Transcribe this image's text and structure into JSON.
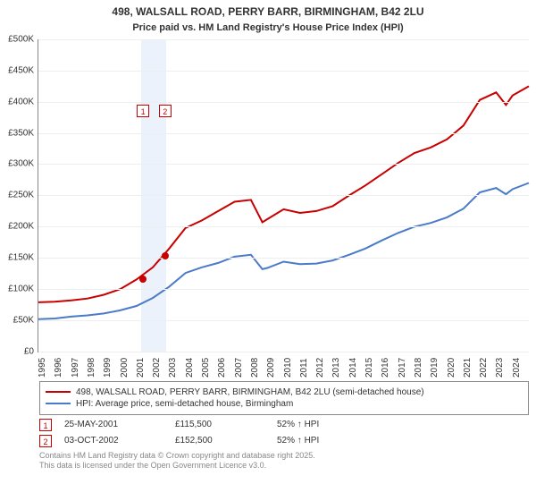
{
  "title": "498, WALSALL ROAD, PERRY BARR, BIRMINGHAM, B42 2LU",
  "subtitle": "Price paid vs. HM Land Registry's House Price Index (HPI)",
  "chart": {
    "type": "line",
    "x_axis": {
      "min": 1995,
      "max": 2025,
      "ticks": [
        1995,
        1996,
        1997,
        1998,
        1999,
        2000,
        2001,
        2002,
        2003,
        2004,
        2005,
        2006,
        2007,
        2008,
        2009,
        2010,
        2011,
        2012,
        2013,
        2014,
        2015,
        2016,
        2017,
        2018,
        2019,
        2020,
        2021,
        2022,
        2023,
        2024
      ],
      "label_fontsize": 10,
      "label_rotation_deg": -90
    },
    "y_axis": {
      "min": 0,
      "max": 500000,
      "ticks": [
        0,
        50000,
        100000,
        150000,
        200000,
        250000,
        300000,
        350000,
        400000,
        450000,
        500000
      ],
      "tick_labels": [
        "£0",
        "£50,000K",
        "£100,000K",
        "£150,000K",
        "£200,000K",
        "£250,000K",
        "£300,000K",
        "£350,000K",
        "£400,000K",
        "£450,000K",
        "£500,000K"
      ],
      "tick_labels_short": [
        "£0",
        "£50,000K",
        "£100,000K",
        "£150,000K",
        "£200,000K",
        "£250,000K",
        "£300,000K",
        "£350,000K",
        "£400,000K",
        "£450,000K",
        "£500,000K"
      ],
      "label_fontsize": 10,
      "grid_color": "#eeeeee"
    },
    "background_color": "#ffffff",
    "series": [
      {
        "name": "498, WALSALL ROAD, PERRY BARR, BIRMINGHAM, B42 2LU (semi-detached house)",
        "color": "#c80000",
        "line_width": 2,
        "data": [
          [
            1995,
            79000
          ],
          [
            1996,
            80000
          ],
          [
            1997,
            82000
          ],
          [
            1998,
            85000
          ],
          [
            1999,
            91000
          ],
          [
            2000,
            100000
          ],
          [
            2001,
            115500
          ],
          [
            2002,
            135000
          ],
          [
            2003,
            165000
          ],
          [
            2004,
            198000
          ],
          [
            2005,
            210000
          ],
          [
            2006,
            225000
          ],
          [
            2007,
            240000
          ],
          [
            2008,
            243000
          ],
          [
            2008.7,
            207000
          ],
          [
            2009,
            212000
          ],
          [
            2010,
            228000
          ],
          [
            2011,
            222000
          ],
          [
            2012,
            225000
          ],
          [
            2013,
            233000
          ],
          [
            2014,
            250000
          ],
          [
            2015,
            266000
          ],
          [
            2016,
            284000
          ],
          [
            2017,
            302000
          ],
          [
            2018,
            318000
          ],
          [
            2019,
            327000
          ],
          [
            2020,
            340000
          ],
          [
            2021,
            362000
          ],
          [
            2022,
            403000
          ],
          [
            2023,
            415000
          ],
          [
            2023.6,
            395000
          ],
          [
            2024,
            410000
          ],
          [
            2025,
            425000
          ]
        ]
      },
      {
        "name": "HPI: Average price, semi-detached house, Birmingham",
        "color": "#4a7bc8",
        "line_width": 2,
        "data": [
          [
            1995,
            52000
          ],
          [
            1996,
            53000
          ],
          [
            1997,
            56000
          ],
          [
            1998,
            58000
          ],
          [
            1999,
            61000
          ],
          [
            2000,
            66000
          ],
          [
            2001,
            73000
          ],
          [
            2002,
            86000
          ],
          [
            2003,
            104000
          ],
          [
            2004,
            126000
          ],
          [
            2005,
            135000
          ],
          [
            2006,
            142000
          ],
          [
            2007,
            152000
          ],
          [
            2008,
            155000
          ],
          [
            2008.7,
            132000
          ],
          [
            2009,
            134000
          ],
          [
            2010,
            144000
          ],
          [
            2011,
            140000
          ],
          [
            2012,
            141000
          ],
          [
            2013,
            146000
          ],
          [
            2014,
            155000
          ],
          [
            2015,
            165000
          ],
          [
            2016,
            178000
          ],
          [
            2017,
            190000
          ],
          [
            2018,
            200000
          ],
          [
            2019,
            206000
          ],
          [
            2020,
            215000
          ],
          [
            2021,
            229000
          ],
          [
            2022,
            255000
          ],
          [
            2023,
            262000
          ],
          [
            2023.6,
            252000
          ],
          [
            2024,
            260000
          ],
          [
            2025,
            270000
          ]
        ]
      }
    ],
    "highlight_band": {
      "x_start": 2001.3,
      "x_end": 2002.8,
      "fill": "rgba(100,150,220,0.12)"
    },
    "sale_markers": [
      {
        "n": "1",
        "year": 2001.4,
        "value": 115500,
        "color": "#c80000"
      },
      {
        "n": "2",
        "year": 2002.75,
        "value": 152500,
        "color": "#c80000"
      }
    ],
    "marker_tag_y_offset": 385000
  },
  "legend": {
    "items": [
      {
        "color": "#c80000",
        "label": "498, WALSALL ROAD, PERRY BARR, BIRMINGHAM, B42 2LU (semi-detached house)"
      },
      {
        "color": "#4a7bc8",
        "label": "HPI: Average price, semi-detached house, Birmingham"
      }
    ]
  },
  "sales": [
    {
      "n": "1",
      "color": "#c80000",
      "date": "25-MAY-2001",
      "price": "£115,500",
      "pct": "52% ↑ HPI"
    },
    {
      "n": "2",
      "color": "#c80000",
      "date": "03-OCT-2002",
      "price": "£152,500",
      "pct": "52% ↑ HPI"
    }
  ],
  "attribution": {
    "line1": "Contains HM Land Registry data © Crown copyright and database right 2025.",
    "line2": "This data is licensed under the Open Government Licence v3.0."
  },
  "y_tick_prefix": "£",
  "y_tick_suffix": "K"
}
